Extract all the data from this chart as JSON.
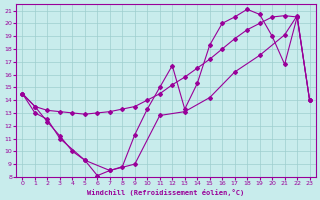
{
  "xlabel": "Windchill (Refroidissement éolien,°C)",
  "xlim": [
    -0.5,
    23.5
  ],
  "ylim": [
    8,
    21.5
  ],
  "xticks": [
    0,
    1,
    2,
    3,
    4,
    5,
    6,
    7,
    8,
    9,
    10,
    11,
    12,
    13,
    14,
    15,
    16,
    17,
    18,
    19,
    20,
    21,
    22,
    23
  ],
  "yticks": [
    8,
    9,
    10,
    11,
    12,
    13,
    14,
    15,
    16,
    17,
    18,
    19,
    20,
    21
  ],
  "bg_color": "#c8ecec",
  "line_color": "#990099",
  "grid_color": "#9ecece",
  "line1_x": [
    0,
    1,
    2,
    3,
    4,
    5,
    6,
    7,
    8,
    9,
    10,
    11,
    12,
    13,
    14,
    15,
    16,
    17,
    18,
    19,
    20,
    21,
    22,
    23
  ],
  "line1_y": [
    14.5,
    13.5,
    12.3,
    11.2,
    10.0,
    9.3,
    8.1,
    8.5,
    8.8,
    11.3,
    13.3,
    15.0,
    16.7,
    13.3,
    15.3,
    18.3,
    20.0,
    20.5,
    21.1,
    20.7,
    19.0,
    16.8,
    20.5,
    14.0
  ],
  "line2_x": [
    0,
    1,
    2,
    3,
    4,
    5,
    6,
    7,
    8,
    9,
    10,
    11,
    12,
    13,
    14,
    15,
    16,
    17,
    18,
    19,
    20,
    21,
    22,
    23
  ],
  "line2_y": [
    14.5,
    13.5,
    13.2,
    13.1,
    13.0,
    12.9,
    13.0,
    13.1,
    13.3,
    13.5,
    14.0,
    14.5,
    15.2,
    15.8,
    16.5,
    17.2,
    18.0,
    18.8,
    19.5,
    20.0,
    20.5,
    20.6,
    20.5,
    14.0
  ],
  "line3_x": [
    0,
    1,
    2,
    3,
    5,
    7,
    9,
    11,
    13,
    15,
    17,
    19,
    21,
    22,
    23
  ],
  "line3_y": [
    14.5,
    13.0,
    12.5,
    11.0,
    9.3,
    8.5,
    9.0,
    12.8,
    13.1,
    14.2,
    16.2,
    17.5,
    19.1,
    20.6,
    14.0
  ]
}
